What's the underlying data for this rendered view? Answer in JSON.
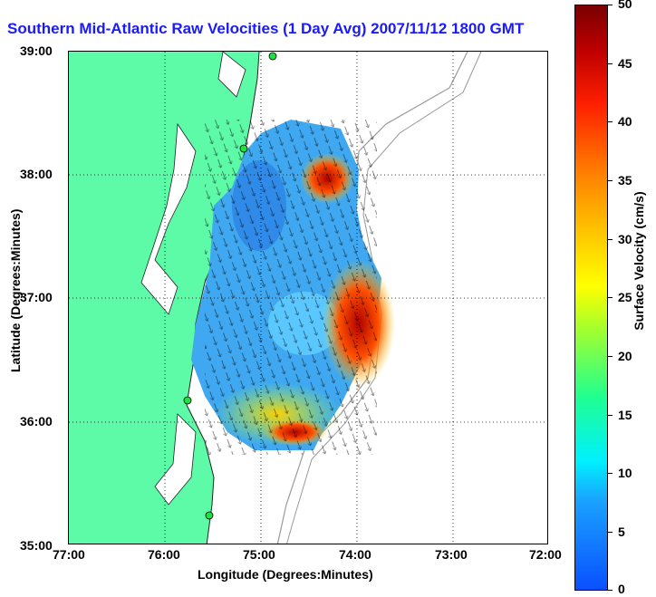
{
  "title": "Southern Mid-Atlantic Raw Velocities (1 Day Avg) 2007/11/12 1800 GMT",
  "map": {
    "x_axis_label": "Longitude (Degrees:Minutes)",
    "y_axis_label": "Latitude (Degrees:Minutes)",
    "x_ticks": [
      "77:00",
      "76:00",
      "75:00",
      "74:00",
      "73:00",
      "72:00"
    ],
    "y_ticks": [
      "39:00",
      "38:00",
      "37:00",
      "36:00",
      "35:00"
    ],
    "land_color": "#5dfaa8",
    "grid": "dotted"
  },
  "colorbar": {
    "label": "Surface Velocity (cm/s)",
    "ticks": [
      "50",
      "45",
      "40",
      "35",
      "30",
      "25",
      "20",
      "15",
      "10",
      "5",
      "0"
    ],
    "min": 0,
    "max": 50
  }
}
